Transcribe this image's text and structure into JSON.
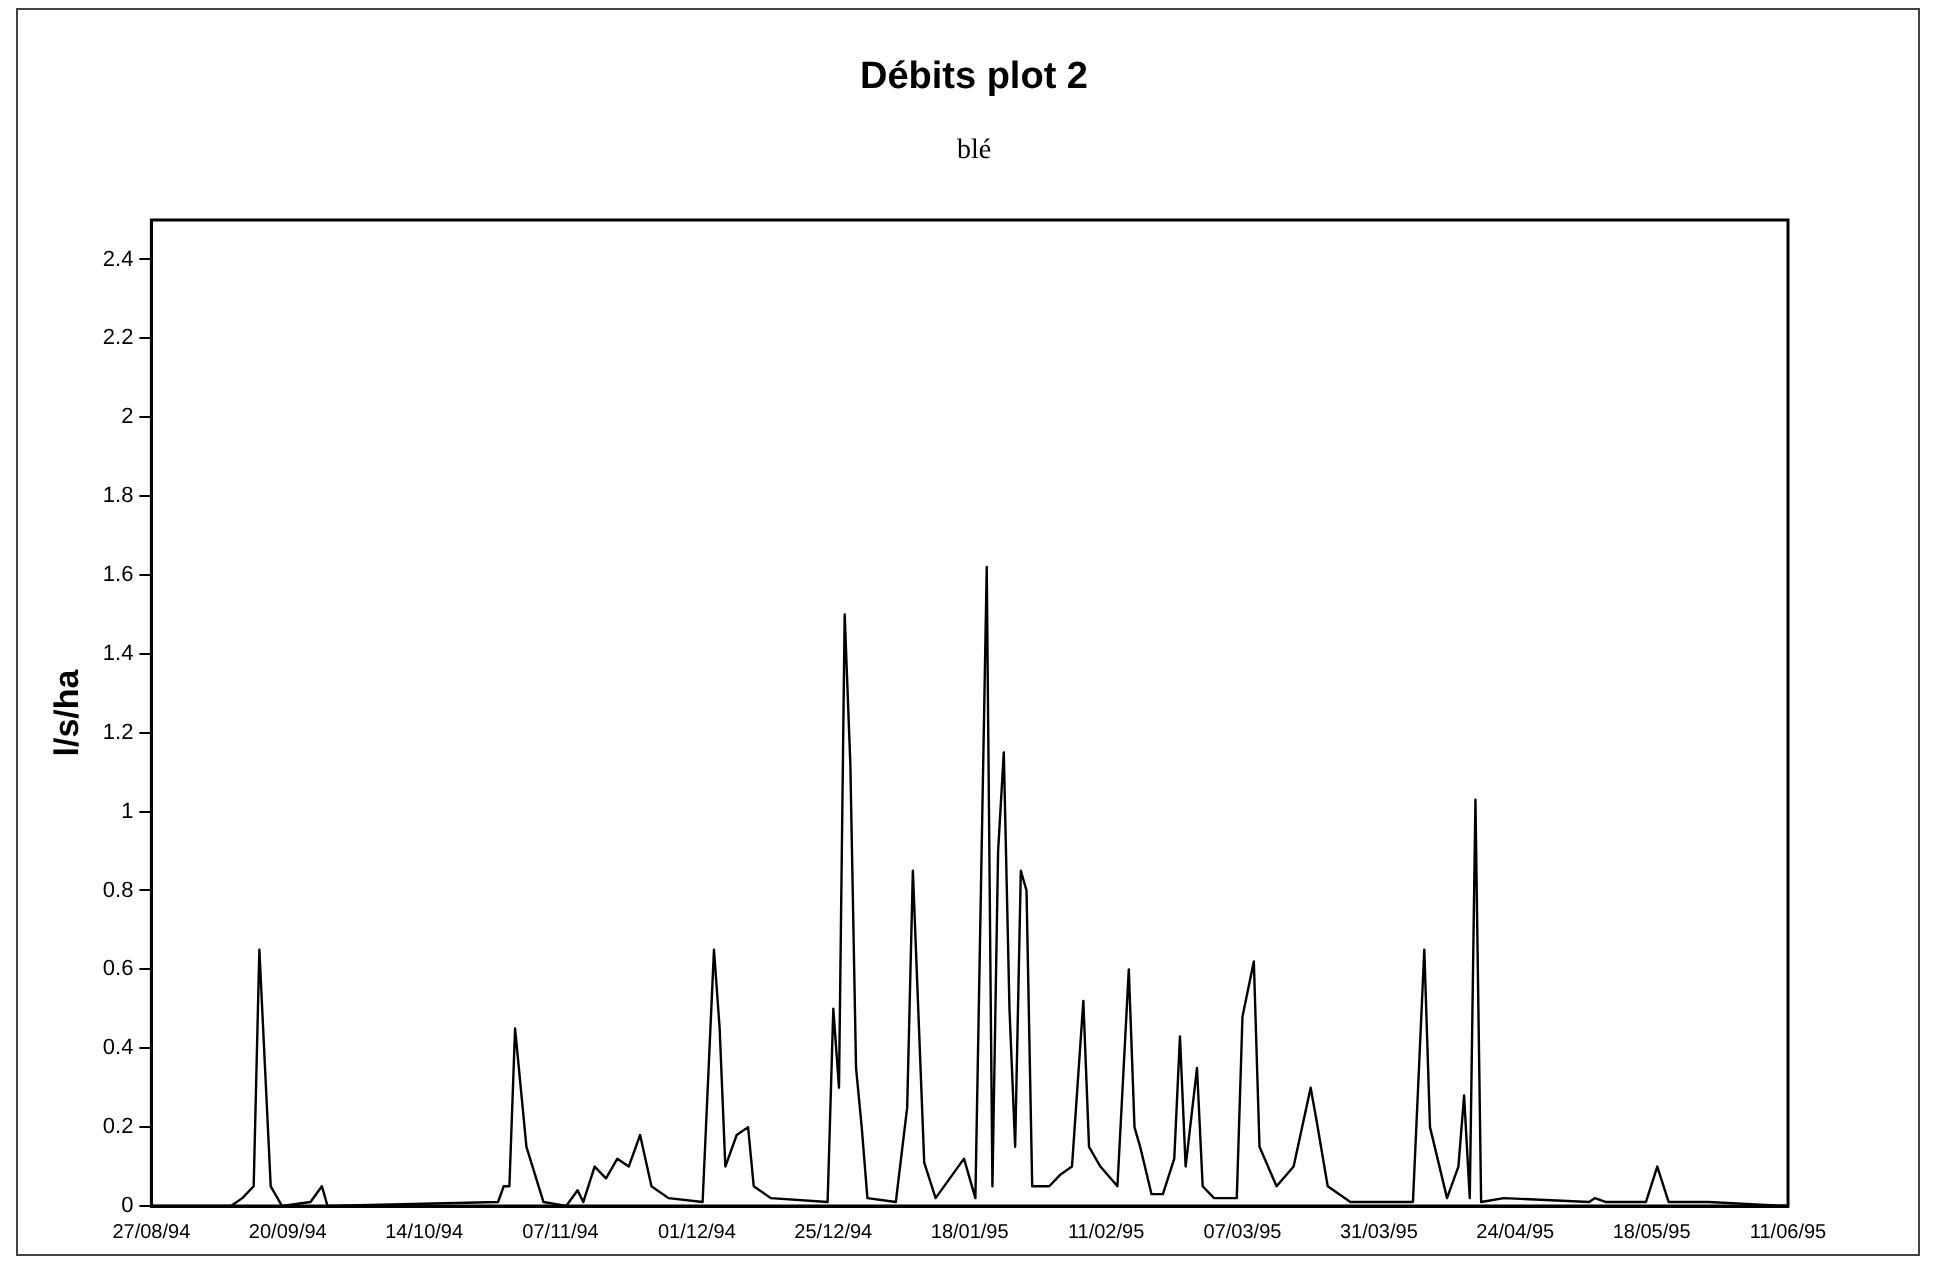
{
  "chart_data": {
    "type": "line",
    "title": "Débits plot 2",
    "subtitle": "blé",
    "ylabel": "l/s/ha",
    "x": [
      "1994-08-27",
      "1994-09-10",
      "1994-09-12",
      "1994-09-14",
      "1994-09-15",
      "1994-09-16",
      "1994-09-17",
      "1994-09-19",
      "1994-09-24",
      "1994-09-26",
      "1994-09-27",
      "1994-10-27",
      "1994-10-28",
      "1994-10-29",
      "1994-10-30",
      "1994-11-01",
      "1994-11-04",
      "1994-11-08",
      "1994-11-10",
      "1994-11-11",
      "1994-11-13",
      "1994-11-15",
      "1994-11-17",
      "1994-11-19",
      "1994-11-21",
      "1994-11-23",
      "1994-11-26",
      "1994-12-02",
      "1994-12-04",
      "1994-12-05",
      "1994-12-06",
      "1994-12-08",
      "1994-12-10",
      "1994-12-11",
      "1994-12-14",
      "1994-12-24",
      "1994-12-25",
      "1994-12-26",
      "1994-12-27",
      "1994-12-28",
      "1994-12-29",
      "1994-12-30",
      "1994-12-31",
      "1995-01-05",
      "1995-01-07",
      "1995-01-08",
      "1995-01-10",
      "1995-01-12",
      "1995-01-17",
      "1995-01-19",
      "1995-01-21",
      "1995-01-22",
      "1995-01-23",
      "1995-01-24",
      "1995-01-25",
      "1995-01-26",
      "1995-01-27",
      "1995-01-28",
      "1995-01-29",
      "1995-02-01",
      "1995-02-03",
      "1995-02-05",
      "1995-02-07",
      "1995-02-08",
      "1995-02-10",
      "1995-02-13",
      "1995-02-15",
      "1995-02-16",
      "1995-02-17",
      "1995-02-19",
      "1995-02-21",
      "1995-02-23",
      "1995-02-24",
      "1995-02-25",
      "1995-02-27",
      "1995-02-28",
      "1995-03-02",
      "1995-03-06",
      "1995-03-07",
      "1995-03-09",
      "1995-03-10",
      "1995-03-13",
      "1995-03-16",
      "1995-03-19",
      "1995-03-20",
      "1995-03-22",
      "1995-03-26",
      "1995-04-06",
      "1995-04-08",
      "1995-04-09",
      "1995-04-12",
      "1995-04-14",
      "1995-04-15",
      "1995-04-16",
      "1995-04-17",
      "1995-04-18",
      "1995-04-22",
      "1995-05-07",
      "1995-05-08",
      "1995-05-10",
      "1995-05-17",
      "1995-05-19",
      "1995-05-21",
      "1995-05-28",
      "1995-06-11"
    ],
    "series": [
      {
        "color": "#000000",
        "values": [
          0,
          0,
          0.02,
          0.05,
          0.65,
          0.35,
          0.05,
          0,
          0.01,
          0.05,
          0,
          0.01,
          0.05,
          0.05,
          0.45,
          0.15,
          0.01,
          0,
          0.04,
          0.01,
          0.1,
          0.07,
          0.12,
          0.1,
          0.18,
          0.05,
          0.02,
          0.01,
          0.65,
          0.45,
          0.1,
          0.18,
          0.2,
          0.05,
          0.02,
          0.01,
          0.5,
          0.3,
          1.5,
          1.12,
          0.35,
          0.2,
          0.02,
          0.01,
          0.25,
          0.85,
          0.11,
          0.02,
          0.12,
          0.02,
          1.62,
          0.05,
          0.9,
          1.15,
          0.5,
          0.15,
          0.85,
          0.8,
          0.05,
          0.05,
          0.08,
          0.1,
          0.52,
          0.15,
          0.1,
          0.05,
          0.6,
          0.2,
          0.15,
          0.03,
          0.03,
          0.12,
          0.43,
          0.1,
          0.35,
          0.05,
          0.02,
          0.02,
          0.48,
          0.62,
          0.15,
          0.05,
          0.1,
          0.3,
          0.22,
          0.05,
          0.01,
          0.01,
          0.65,
          0.2,
          0.02,
          0.1,
          0.28,
          0.02,
          1.03,
          0.01,
          0.02,
          0.01,
          0.02,
          0.01,
          0.01,
          0.1,
          0.01,
          0.01,
          0
        ]
      }
    ],
    "xlim": [
      "1994-08-27",
      "1995-06-11"
    ],
    "xticks": [
      {
        "value": "1994-08-27",
        "label": "27/08/94"
      },
      {
        "value": "1994-09-20",
        "label": "20/09/94"
      },
      {
        "value": "1994-10-14",
        "label": "14/10/94"
      },
      {
        "value": "1994-11-07",
        "label": "07/11/94"
      },
      {
        "value": "1994-12-01",
        "label": "01/12/94"
      },
      {
        "value": "1994-12-25",
        "label": "25/12/94"
      },
      {
        "value": "1995-01-18",
        "label": "18/01/95"
      },
      {
        "value": "1995-02-11",
        "label": "11/02/95"
      },
      {
        "value": "1995-03-07",
        "label": "07/03/95"
      },
      {
        "value": "1995-03-31",
        "label": "31/03/95"
      },
      {
        "value": "1995-04-24",
        "label": "24/04/95"
      },
      {
        "value": "1995-05-18",
        "label": "18/05/95"
      },
      {
        "value": "1995-06-11",
        "label": "11/06/95"
      }
    ],
    "ylim": [
      0,
      2.5
    ],
    "yticks": [
      0,
      0.2,
      0.4,
      0.6,
      0.8,
      1,
      1.2,
      1.4,
      1.6,
      1.8,
      2,
      2.2,
      2.4
    ],
    "grid": false,
    "legend": false,
    "marker": "none",
    "line_style": "solid"
  }
}
